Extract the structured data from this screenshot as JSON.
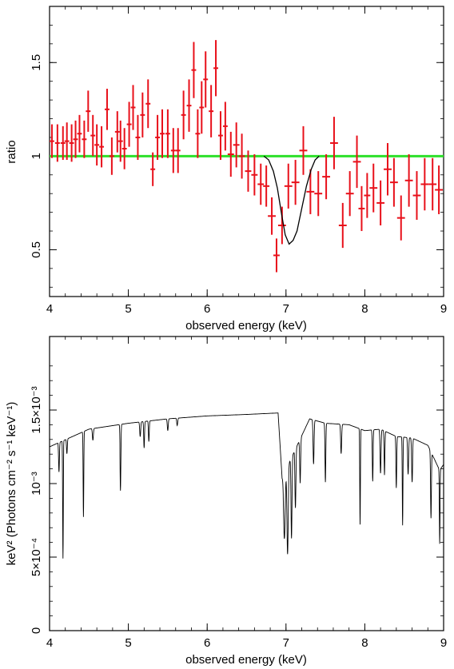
{
  "colors": {
    "data": "#e8101a",
    "unity": "#2ee02a",
    "model": "#000000",
    "axes": "#000000"
  },
  "chart_data": [
    {
      "type": "scatter",
      "title": "",
      "xlabel": "observed energy (keV)",
      "ylabel": "ratio",
      "xlim": [
        4,
        9
      ],
      "ylim": [
        0.25,
        1.8
      ],
      "xticks": [
        4,
        5,
        6,
        7,
        8,
        9
      ],
      "xtick_labels": [
        "4",
        "5",
        "6",
        "7",
        "8",
        "9"
      ],
      "yticks": [
        0.5,
        1,
        1.5
      ],
      "ytick_labels": [
        "0.5",
        "1",
        "1.5"
      ],
      "grid": false,
      "legend": "none",
      "series": [
        {
          "kind": "errorbar",
          "x": [
            4.03,
            4.1,
            4.17,
            4.22,
            4.28,
            4.33,
            4.38,
            4.44,
            4.49,
            4.55,
            4.6,
            4.66,
            4.73,
            4.79,
            4.86,
            4.9,
            4.95,
            5.01,
            5.06,
            5.12,
            5.18,
            5.25,
            5.31,
            5.37,
            5.43,
            5.5,
            5.57,
            5.63,
            5.7,
            5.77,
            5.83,
            5.88,
            5.93,
            5.98,
            6.05,
            6.11,
            6.17,
            6.23,
            6.3,
            6.37,
            6.44,
            6.52,
            6.6,
            6.68,
            6.75,
            6.82,
            6.88,
            6.95,
            7.03,
            7.12,
            7.22,
            7.31,
            7.41,
            7.51,
            7.61,
            7.72,
            7.81,
            7.9,
            7.96,
            8.03,
            8.11,
            8.2,
            8.29,
            8.37,
            8.46,
            8.56,
            8.66,
            8.76,
            8.86,
            8.94
          ],
          "y": [
            1.08,
            1.07,
            1.07,
            1.08,
            1.07,
            1.09,
            1.12,
            1.09,
            1.24,
            1.11,
            1.06,
            1.05,
            1.25,
            1.0,
            1.13,
            1.08,
            1.04,
            1.17,
            1.26,
            1.1,
            1.22,
            1.28,
            0.93,
            1.1,
            1.12,
            1.12,
            1.03,
            1.03,
            1.22,
            1.27,
            1.46,
            1.12,
            1.26,
            1.41,
            1.24,
            1.47,
            1.11,
            1.16,
            1.01,
            1.06,
            1.0,
            0.92,
            0.9,
            0.85,
            0.84,
            0.68,
            0.47,
            0.63,
            0.84,
            0.86,
            1.03,
            0.81,
            0.8,
            0.89,
            1.07,
            0.63,
            0.8,
            0.97,
            0.72,
            0.79,
            0.83,
            0.75,
            0.93,
            0.86,
            0.67,
            0.87,
            0.79,
            0.85,
            0.85,
            0.82
          ],
          "xerr": [
            0.03,
            0.03,
            0.03,
            0.03,
            0.03,
            0.03,
            0.03,
            0.03,
            0.03,
            0.03,
            0.03,
            0.03,
            0.03,
            0.03,
            0.03,
            0.03,
            0.03,
            0.03,
            0.03,
            0.03,
            0.03,
            0.03,
            0.03,
            0.03,
            0.03,
            0.03,
            0.03,
            0.03,
            0.03,
            0.03,
            0.03,
            0.03,
            0.03,
            0.03,
            0.03,
            0.03,
            0.03,
            0.03,
            0.04,
            0.04,
            0.04,
            0.04,
            0.04,
            0.04,
            0.04,
            0.05,
            0.04,
            0.05,
            0.05,
            0.05,
            0.05,
            0.05,
            0.05,
            0.05,
            0.05,
            0.05,
            0.05,
            0.05,
            0.04,
            0.04,
            0.05,
            0.05,
            0.05,
            0.05,
            0.05,
            0.05,
            0.05,
            0.05,
            0.05,
            0.05
          ],
          "yerr": [
            0.09,
            0.1,
            0.09,
            0.1,
            0.1,
            0.1,
            0.1,
            0.1,
            0.11,
            0.11,
            0.11,
            0.11,
            0.11,
            0.1,
            0.11,
            0.11,
            0.11,
            0.12,
            0.12,
            0.12,
            0.12,
            0.13,
            0.09,
            0.12,
            0.13,
            0.13,
            0.12,
            0.12,
            0.13,
            0.14,
            0.15,
            0.13,
            0.14,
            0.15,
            0.14,
            0.15,
            0.13,
            0.13,
            0.12,
            0.12,
            0.12,
            0.11,
            0.11,
            0.11,
            0.11,
            0.1,
            0.09,
            0.1,
            0.12,
            0.12,
            0.13,
            0.12,
            0.12,
            0.12,
            0.14,
            0.12,
            0.12,
            0.14,
            0.12,
            0.12,
            0.13,
            0.12,
            0.14,
            0.13,
            0.12,
            0.14,
            0.13,
            0.14,
            0.14,
            0.13
          ]
        },
        {
          "kind": "line",
          "x": [
            4,
            9
          ],
          "y": [
            1.0,
            1.0
          ]
        },
        {
          "kind": "line",
          "x": [
            6.72,
            6.78,
            6.84,
            6.89,
            6.94,
            6.99,
            7.04,
            7.09,
            7.14,
            7.2,
            7.26,
            7.32,
            7.37,
            7.42
          ],
          "y": [
            1.0,
            0.98,
            0.92,
            0.83,
            0.7,
            0.58,
            0.53,
            0.55,
            0.6,
            0.72,
            0.84,
            0.93,
            0.98,
            1.0
          ]
        }
      ]
    },
    {
      "type": "line",
      "title": "",
      "xlabel": "observed energy (keV)",
      "ylabel": "keV² (Photons cm⁻² s⁻¹ keV⁻¹)",
      "xlim": [
        4,
        9
      ],
      "ylim": [
        0,
        0.002
      ],
      "xticks": [
        4,
        5,
        6,
        7,
        8,
        9
      ],
      "xtick_labels": [
        "4",
        "5",
        "6",
        "7",
        "8",
        "9"
      ],
      "yticks": [
        0,
        0.0005,
        0.001,
        0.0015
      ],
      "ytick_labels": [
        "0",
        "5×10⁻⁴",
        "10⁻³",
        "1.5×10⁻³"
      ],
      "grid": false,
      "legend": "none",
      "continuum": {
        "x": [
          4.0,
          4.5,
          5.0,
          5.5,
          6.0,
          6.5,
          6.9,
          6.95,
          7.3,
          7.5,
          7.8,
          8.0,
          8.2,
          8.4,
          8.6,
          8.8,
          8.95,
          9.0
        ],
        "y": [
          0.00125,
          0.00137,
          0.00141,
          0.00144,
          0.00146,
          0.00147,
          0.00148,
          0.00104,
          0.00144,
          0.00141,
          0.0014,
          0.00136,
          0.00137,
          0.00132,
          0.00131,
          0.00126,
          0.00109,
          0.00113
        ]
      },
      "absorption_lines": [
        {
          "x": 4.12,
          "depth": 0.0002,
          "width": 0.005
        },
        {
          "x": 4.17,
          "depth": 0.0008,
          "width": 0.004
        },
        {
          "x": 4.22,
          "depth": 0.0001,
          "width": 0.005
        },
        {
          "x": 4.43,
          "depth": 0.00058,
          "width": 0.004
        },
        {
          "x": 4.55,
          "depth": 8e-05,
          "width": 0.006
        },
        {
          "x": 4.9,
          "depth": 0.00045,
          "width": 0.005
        },
        {
          "x": 5.15,
          "depth": 0.0001,
          "width": 0.006
        },
        {
          "x": 5.2,
          "depth": 0.00018,
          "width": 0.005
        },
        {
          "x": 5.26,
          "depth": 0.00014,
          "width": 0.005
        },
        {
          "x": 5.5,
          "depth": 8e-05,
          "width": 0.006
        },
        {
          "x": 5.62,
          "depth": 5e-05,
          "width": 0.006
        },
        {
          "x": 6.98,
          "depth": 0.00045,
          "width": 0.01
        },
        {
          "x": 7.02,
          "depth": 0.0006,
          "width": 0.008
        },
        {
          "x": 7.07,
          "depth": 0.00055,
          "width": 0.006
        },
        {
          "x": 7.12,
          "depth": 0.0004,
          "width": 0.006
        },
        {
          "x": 7.18,
          "depth": 0.0003,
          "width": 0.006
        },
        {
          "x": 7.35,
          "depth": 0.0003,
          "width": 0.006
        },
        {
          "x": 7.5,
          "depth": 0.0004,
          "width": 0.005
        },
        {
          "x": 7.7,
          "depth": 0.0002,
          "width": 0.006
        },
        {
          "x": 7.94,
          "depth": 0.00065,
          "width": 0.004
        },
        {
          "x": 8.1,
          "depth": 0.00035,
          "width": 0.005
        },
        {
          "x": 8.2,
          "depth": 0.0003,
          "width": 0.006
        },
        {
          "x": 8.25,
          "depth": 0.0003,
          "width": 0.005
        },
        {
          "x": 8.4,
          "depth": 0.00035,
          "width": 0.005
        },
        {
          "x": 8.48,
          "depth": 0.0006,
          "width": 0.004
        },
        {
          "x": 8.55,
          "depth": 0.00025,
          "width": 0.006
        },
        {
          "x": 8.6,
          "depth": 0.0003,
          "width": 0.006
        },
        {
          "x": 8.84,
          "depth": 0.00045,
          "width": 0.005
        },
        {
          "x": 8.95,
          "depth": 0.0005,
          "width": 0.004
        }
      ]
    }
  ]
}
